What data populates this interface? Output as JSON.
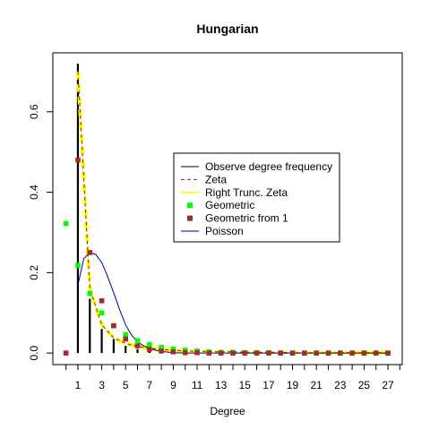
{
  "chart_data": {
    "type": "scatter",
    "title": "Hungarian",
    "xlabel": "Degree",
    "ylabel": "",
    "xlim": [
      -1.1,
      28.2
    ],
    "ylim": [
      -0.0287,
      0.7466
    ],
    "x_ticks": [
      1,
      3,
      5,
      7,
      9,
      11,
      13,
      15,
      17,
      19,
      21,
      23,
      25,
      27
    ],
    "y_ticks": [
      0.0,
      0.2,
      0.4,
      0.6
    ],
    "y_tick_labels": [
      "0.0",
      "0.2",
      "0.4",
      "0.6"
    ],
    "legend_position": "center-right",
    "series": [
      {
        "name": "Observe degree frequency",
        "kind": "stems",
        "color": "#000000",
        "x": [
          1,
          2,
          3,
          4,
          5,
          6,
          7,
          8,
          9,
          10,
          11,
          12,
          13,
          14,
          15,
          16,
          17,
          18,
          19,
          20,
          21,
          22,
          23,
          24,
          25,
          26,
          27
        ],
        "y": [
          0.72,
          0.135,
          0.06,
          0.035,
          0.018,
          0.01,
          0.007,
          0.004,
          0.003,
          0.002,
          0.002,
          0.001,
          0.001,
          0.001,
          0.001,
          0.001,
          0.001,
          0.001,
          0.001,
          0.001,
          0.001,
          0.001,
          0.001,
          0.001,
          0.001,
          0.001,
          0.001
        ]
      },
      {
        "name": "Zeta",
        "kind": "dashed-line",
        "color": "#8b2323",
        "x": [
          1,
          2,
          3,
          4,
          5,
          6,
          7,
          8,
          9,
          10,
          11,
          12,
          13,
          14,
          15,
          16,
          17,
          18,
          19,
          20,
          21,
          22,
          23,
          24,
          25,
          26,
          27
        ],
        "y": [
          0.7,
          0.16,
          0.07,
          0.038,
          0.024,
          0.016,
          0.012,
          0.009,
          0.007,
          0.005,
          0.004,
          0.004,
          0.003,
          0.003,
          0.002,
          0.002,
          0.002,
          0.002,
          0.001,
          0.001,
          0.001,
          0.001,
          0.001,
          0.001,
          0.001,
          0.001,
          0.001
        ]
      },
      {
        "name": "Right Trunc. Zeta",
        "kind": "thick-dashed-line",
        "color": "#ffff00",
        "x": [
          1,
          2,
          3,
          4,
          5,
          6,
          7,
          8,
          9,
          10,
          11,
          12,
          13,
          14,
          15,
          16,
          17,
          18,
          19,
          20,
          21,
          22,
          23,
          24,
          25,
          26,
          27
        ],
        "y": [
          0.7,
          0.16,
          0.07,
          0.038,
          0.024,
          0.016,
          0.012,
          0.009,
          0.007,
          0.005,
          0.004,
          0.004,
          0.003,
          0.003,
          0.002,
          0.002,
          0.002,
          0.002,
          0.001,
          0.001,
          0.001,
          0.001,
          0.001,
          0.001,
          0.001,
          0.001,
          0.001
        ]
      },
      {
        "name": "Geometric",
        "kind": "points",
        "color": "#00ff00",
        "x": [
          0,
          1,
          2,
          3,
          4,
          5,
          6,
          7,
          8,
          9,
          10,
          11,
          12,
          13,
          14,
          15,
          16,
          17,
          18,
          19,
          20,
          21,
          22,
          23,
          24,
          25,
          26,
          27
        ],
        "y": [
          0.322,
          0.218,
          0.148,
          0.1,
          0.068,
          0.046,
          0.031,
          0.021,
          0.014,
          0.01,
          0.007,
          0.005,
          0.003,
          0.002,
          0.002,
          0.001,
          0.001,
          0.001,
          0.0,
          0.0,
          0.0,
          0.0,
          0.0,
          0.0,
          0.0,
          0.0,
          0.0,
          0.0
        ]
      },
      {
        "name": "Geometric from 1",
        "kind": "points",
        "color": "#a52a2a",
        "x": [
          0,
          1,
          2,
          3,
          4,
          5,
          6,
          7,
          8,
          9,
          10,
          11,
          12,
          13,
          14,
          15,
          16,
          17,
          18,
          19,
          20,
          21,
          22,
          23,
          24,
          25,
          26,
          27
        ],
        "y": [
          0.0,
          0.48,
          0.25,
          0.13,
          0.068,
          0.035,
          0.018,
          0.009,
          0.005,
          0.003,
          0.001,
          0.001,
          0.0,
          0.0,
          0.0,
          0.0,
          0.0,
          0.0,
          0.0,
          0.0,
          0.0,
          0.0,
          0.0,
          0.0,
          0.0,
          0.0,
          0.0,
          0.0
        ]
      },
      {
        "name": "Poisson",
        "kind": "line",
        "color": "#00008b",
        "x": [
          1,
          1.5,
          2,
          2.5,
          3,
          3.5,
          4,
          4.5,
          5,
          5.5,
          6,
          6.5,
          7,
          7.5,
          8,
          9,
          10,
          11,
          12,
          13,
          14,
          15,
          16,
          17,
          18,
          19,
          20,
          21,
          22,
          23,
          24,
          25,
          26,
          27
        ],
        "y": [
          0.17,
          0.235,
          0.25,
          0.245,
          0.225,
          0.19,
          0.15,
          0.108,
          0.07,
          0.045,
          0.028,
          0.018,
          0.012,
          0.007,
          0.004,
          0.001,
          0.0,
          0.0,
          0.0,
          0.0,
          0.0,
          0.0,
          0.0,
          0.0,
          0.0,
          0.0,
          0.0,
          0.0,
          0.0,
          0.0,
          0.0,
          0.0,
          0.0,
          0.0
        ]
      }
    ]
  }
}
